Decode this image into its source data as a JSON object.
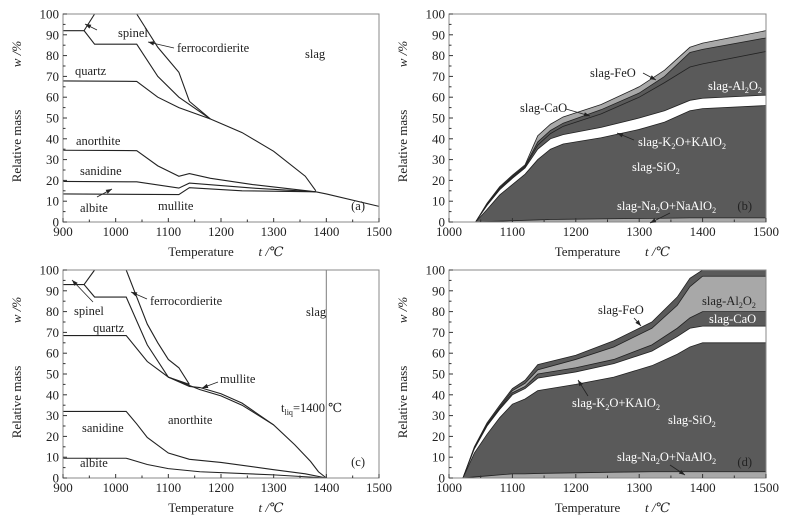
{
  "chart_data": [
    {
      "id": "a",
      "type": "line",
      "panel_label": "(a)",
      "xlabel": "Temperature",
      "xlabel_symbol": "t /℃",
      "ylabel": "Relative mass",
      "ylabel_symbol": "w /%",
      "xlim": [
        900,
        1500
      ],
      "ylim": [
        0,
        100
      ],
      "xticks": [
        900,
        1000,
        1100,
        1200,
        1300,
        1400,
        1500
      ],
      "yticks": [
        0,
        10,
        20,
        30,
        40,
        50,
        60,
        70,
        80,
        90,
        100
      ],
      "series": [
        {
          "name": "albite-top",
          "x": [
            900,
            1120,
            1140,
            1240,
            1380,
            1400,
            1500
          ],
          "y": [
            13.5,
            13.2,
            16.5,
            15.0,
            14.5,
            13.5,
            7.5
          ]
        },
        {
          "name": "mullite-top",
          "x": [
            900,
            1040,
            1120,
            1140,
            1260,
            1380
          ],
          "y": [
            19.5,
            19.3,
            16.3,
            18.7,
            16.3,
            14.5
          ]
        },
        {
          "name": "sanidine-top",
          "x": [
            900,
            1040,
            1080,
            1120,
            1140,
            1180,
            1260,
            1380
          ],
          "y": [
            34.5,
            34.3,
            27,
            22,
            23.3,
            21,
            18,
            14.5
          ]
        },
        {
          "name": "quartz-top",
          "x": [
            900,
            1040,
            1080,
            1120,
            1180,
            1240,
            1300,
            1360,
            1380
          ],
          "y": [
            67.8,
            67.6,
            60,
            55,
            49.5,
            43,
            34,
            22,
            15
          ]
        },
        {
          "name": "ferrocordierite-bottom",
          "x": [
            940,
            960,
            1040,
            1080,
            1120,
            1180
          ],
          "y": [
            92,
            85.5,
            85.5,
            70,
            60,
            49.5
          ]
        },
        {
          "name": "ferrocordierite-top",
          "x": [
            960,
            1040,
            1080,
            1120,
            1140,
            1180
          ],
          "y": [
            100,
            100,
            84,
            72,
            58,
            49.5
          ]
        },
        {
          "name": "spinel-top",
          "x": [
            900,
            940
          ],
          "y": [
            92,
            92
          ]
        },
        {
          "name": "spinel-diag",
          "x": [
            940,
            960
          ],
          "y": [
            92,
            100
          ]
        }
      ],
      "annotations": [
        "spinel",
        "ferrocordierite",
        "slag",
        "quartz",
        "anorthite",
        "sanidine",
        "albite",
        "mullite"
      ]
    },
    {
      "id": "b",
      "type": "area",
      "panel_label": "(b)",
      "xlabel": "Temperature",
      "xlabel_symbol": "t /℃",
      "ylabel": "Relative mass",
      "ylabel_symbol": "w /%",
      "xlim": [
        1000,
        1500
      ],
      "ylim": [
        0,
        100
      ],
      "xticks": [
        1000,
        1100,
        1200,
        1300,
        1400,
        1500
      ],
      "yticks": [
        0,
        10,
        20,
        30,
        40,
        50,
        60,
        70,
        80,
        90,
        100
      ],
      "x": [
        1042,
        1060,
        1080,
        1100,
        1120,
        1140,
        1160,
        1180,
        1240,
        1300,
        1340,
        1380,
        1400,
        1500
      ],
      "series": [
        {
          "name": "slag-Na2O+NaAlO2",
          "cumulative_top": [
            0,
            0.2,
            0.4,
            0.6,
            0.8,
            1.0,
            1.2,
            1.3,
            1.5,
            1.7,
            1.8,
            2.0,
            2.0,
            2.0
          ]
        },
        {
          "name": "slag-SiO2",
          "cumulative_top": [
            0,
            6,
            13,
            18,
            23,
            30,
            35,
            37.5,
            40.5,
            44.5,
            48,
            53.5,
            54.5,
            56
          ]
        },
        {
          "name": "slag-K2O+KAlO2",
          "cumulative_top": [
            0,
            8,
            15.5,
            21,
            26,
            35,
            40,
            42,
            45.5,
            50,
            53.5,
            58.5,
            59.5,
            61
          ]
        },
        {
          "name": "slag-Al2O3",
          "cumulative_top": [
            0,
            8.3,
            16,
            21.5,
            26.5,
            37,
            42.5,
            46,
            52,
            60,
            67,
            74.5,
            76,
            82
          ]
        },
        {
          "name": "slag-CaO",
          "cumulative_top": [
            0,
            8.6,
            16.5,
            22,
            27,
            38.5,
            44,
            47.5,
            54,
            62,
            70,
            81.5,
            83,
            88.5
          ]
        },
        {
          "name": "slag-FeO",
          "cumulative_top": [
            0,
            9,
            17,
            22.5,
            27.5,
            41.5,
            47,
            50.5,
            56.5,
            65,
            73,
            84,
            86,
            92
          ]
        }
      ],
      "annotations": [
        "slag-FeO",
        "slag-CaO",
        "slag-Al2O3",
        "slag-K2O+KAlO2",
        "slag-SiO2",
        "slag-Na2O+NaAlO2"
      ]
    },
    {
      "id": "c",
      "type": "line",
      "panel_label": "(c)",
      "xlabel": "Temperature",
      "xlabel_symbol": "t /℃",
      "ylabel": "Relative mass",
      "ylabel_symbol": "w /%",
      "xlim": [
        900,
        1500
      ],
      "ylim": [
        0,
        100
      ],
      "xticks": [
        900,
        1000,
        1100,
        1200,
        1300,
        1400,
        1500
      ],
      "yticks": [
        0,
        10,
        20,
        30,
        40,
        50,
        60,
        70,
        80,
        90,
        100
      ],
      "series": [
        {
          "name": "albite-top",
          "x": [
            900,
            1020,
            1060,
            1100,
            1160,
            1300,
            1400
          ],
          "y": [
            9.5,
            9.5,
            6.5,
            4.5,
            3,
            1.5,
            0
          ]
        },
        {
          "name": "sanidine-top",
          "x": [
            900,
            1020,
            1040,
            1060,
            1100,
            1140,
            1200,
            1300,
            1360,
            1400
          ],
          "y": [
            32,
            32,
            26,
            19.5,
            12,
            9,
            7.5,
            4,
            2,
            0
          ]
        },
        {
          "name": "anorthite-top",
          "x": [
            900,
            1020,
            1060,
            1100,
            1160,
            1200,
            1240,
            1300,
            1340,
            1370,
            1385,
            1400
          ],
          "y": [
            68.5,
            68.5,
            56,
            48.5,
            42.5,
            39.5,
            35,
            25.5,
            16,
            8,
            3,
            0
          ]
        },
        {
          "name": "mullite-top",
          "x": [
            1100,
            1140,
            1160,
            1200,
            1240,
            1300
          ],
          "y": [
            48.5,
            44,
            43.5,
            40.5,
            36,
            25.5
          ]
        },
        {
          "name": "quartz-top",
          "x": [
            900,
            940,
            960,
            1020,
            1060,
            1100,
            1140
          ],
          "y": [
            93,
            93,
            87,
            87,
            64,
            48.5,
            45
          ]
        },
        {
          "name": "ferrocordierite-top",
          "x": [
            960,
            1020,
            1040,
            1060,
            1080,
            1100,
            1120,
            1140
          ],
          "y": [
            100,
            100,
            87,
            74,
            65,
            57,
            53,
            45
          ]
        },
        {
          "name": "spinel-diag",
          "x": [
            940,
            960
          ],
          "y": [
            93,
            100
          ]
        },
        {
          "name": "liquidus",
          "x": [
            1400,
            1400
          ],
          "y": [
            0,
            100
          ]
        }
      ],
      "annotations": [
        "spinel",
        "ferrocordierite",
        "slag",
        "quartz",
        "mullite",
        "anorthite",
        "sanidine",
        "albite",
        "t_liq=1400 ℃"
      ]
    },
    {
      "id": "d",
      "type": "area",
      "panel_label": "(d)",
      "xlabel": "Temperature",
      "xlabel_symbol": "t /℃",
      "ylabel": "Relative mass",
      "ylabel_symbol": "w /%",
      "xlim": [
        1000,
        1500
      ],
      "ylim": [
        0,
        100
      ],
      "xticks": [
        1000,
        1100,
        1200,
        1300,
        1400,
        1500
      ],
      "yticks": [
        0,
        10,
        20,
        30,
        40,
        50,
        60,
        70,
        80,
        90,
        100
      ],
      "x": [
        1022,
        1040,
        1060,
        1080,
        1100,
        1120,
        1140,
        1200,
        1260,
        1320,
        1360,
        1380,
        1400,
        1500
      ],
      "series": [
        {
          "name": "slag-Na2O+NaAlO2",
          "cumulative_top": [
            0,
            0.5,
            1.0,
            1.5,
            2.0,
            2.0,
            2.2,
            2.5,
            2.8,
            3.0,
            3.0,
            3.0,
            3.0,
            3.0
          ]
        },
        {
          "name": "slag-SiO2",
          "cumulative_top": [
            0,
            12,
            21,
            29,
            35.5,
            38,
            42,
            45,
            48.5,
            54,
            59.5,
            63,
            65,
            65
          ]
        },
        {
          "name": "slag-K2O+KAlO2",
          "cumulative_top": [
            0,
            14,
            25,
            33,
            40,
            43,
            48,
            51,
            55,
            61,
            68,
            72,
            73,
            73
          ]
        },
        {
          "name": "slag-CaO",
          "cumulative_top": [
            0,
            14.3,
            25.3,
            33.5,
            41,
            44,
            50,
            53,
            57,
            64,
            72,
            77,
            80,
            80
          ]
        },
        {
          "name": "slag-Al2O3",
          "cumulative_top": [
            0,
            14.5,
            25.8,
            34,
            42,
            45.5,
            52,
            57,
            63,
            72,
            83,
            92,
            97,
            97
          ]
        },
        {
          "name": "slag-FeO",
          "cumulative_top": [
            0,
            15,
            26.5,
            35,
            43,
            47,
            54.5,
            59,
            66,
            75,
            87,
            96,
            100,
            100
          ]
        }
      ],
      "annotations": [
        "slag-FeO",
        "slag-Al2O3",
        "slag-CaO",
        "slag-K2O+KAlO2",
        "slag-SiO2",
        "slag-Na2O+NaAlO2"
      ]
    }
  ],
  "colors": {
    "dark_fill": "#5a5a5a",
    "light_fill": "#a8a8a8",
    "line": "#222222",
    "frame": "#888888"
  },
  "labels": {
    "a": {
      "spinel": "spinel",
      "ferrocordierite": "ferrocordierite",
      "slag": "slag",
      "quartz": "quartz",
      "anorthite": "anorthite",
      "sanidine": "sanidine",
      "albite": "albite",
      "mullite": "mullite"
    },
    "b": {
      "feo": "slag-FeO",
      "cao": "slag-CaO",
      "al2o3_pre": "slag-Al",
      "al2o3_sub1": "2",
      "al2o3_mid": "O",
      "al2o3_sub2": "2",
      "k2o_pre": "slag-K",
      "k2o_sub1": "2",
      "k2o_post": "O+KAlO",
      "k2o_sub2": "2",
      "sio2_pre": "slag-SiO",
      "sio2_sub": "2",
      "na2o_pre": "slag-Na",
      "na2o_sub1": "2",
      "na2o_post": "O+NaAlO",
      "na2o_sub2": "2"
    },
    "c": {
      "spinel": "spinel",
      "ferrocordierite": "ferrocordierite",
      "slag": "slag",
      "quartz": "quartz",
      "mullite": "mullite",
      "anorthite": "anorthite",
      "sanidine": "sanidine",
      "albite": "albite",
      "tliq_t": "t",
      "tliq_sub": "liq",
      "tliq_val": "=1400 ℃"
    },
    "d": {
      "feo": "slag-FeO",
      "cao": "slag-CaO"
    }
  }
}
